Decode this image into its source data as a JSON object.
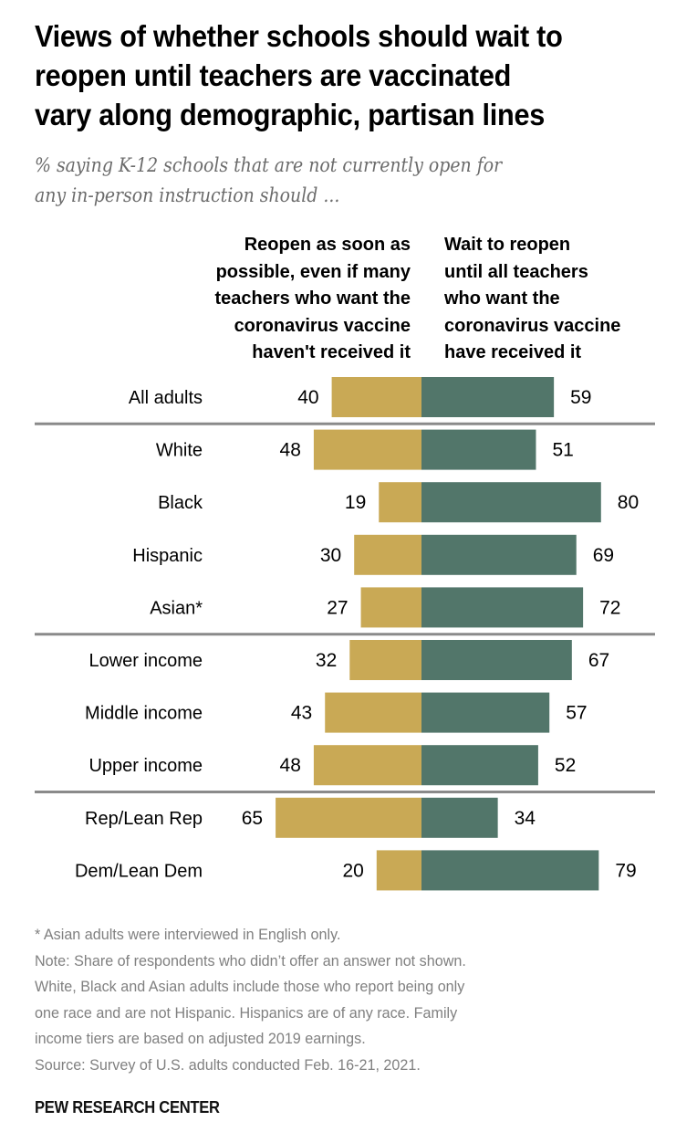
{
  "header": {
    "title_lines": [
      "Views of whether schools should wait to",
      "reopen until teachers are vaccinated",
      "vary along demographic, partisan lines"
    ],
    "subtitle_lines": [
      "% saying K-12 schools that are not currently open for",
      "any in-person instruction should ..."
    ]
  },
  "colors": {
    "reopen": "#C9A955",
    "wait": "#52766A",
    "separator": "#8a8a8a",
    "notes_text": "#808080"
  },
  "chart_data": {
    "type": "bar",
    "orientation": "horizontal-diverging",
    "title": "Views of whether schools should wait to reopen until teachers are vaccinated vary along demographic, partisan lines",
    "subtitle": "% saying K-12 schools that are not currently open for any in-person instruction should ...",
    "xlabel": "",
    "ylabel": "",
    "xlim": [
      0,
      100
    ],
    "grid": false,
    "categories": [
      "All adults",
      "White",
      "Black",
      "Hispanic",
      "Asian*",
      "Lower income",
      "Middle income",
      "Upper income",
      "Rep/Lean Rep",
      "Dem/Lean Dem"
    ],
    "series": [
      {
        "name": "Reopen as soon as possible, even if many teachers who want the coronavirus vaccine haven't received it",
        "header_lines": [
          "Reopen as soon as",
          "possible, even if many",
          "teachers who want the",
          "coronavirus vaccine",
          "haven't received it"
        ],
        "direction": "left",
        "values": [
          40,
          48,
          19,
          30,
          27,
          32,
          43,
          48,
          65,
          20
        ]
      },
      {
        "name": "Wait to reopen until all teachers who want the coronavirus vaccine have received it",
        "header_lines": [
          "Wait to reopen",
          "until all teachers",
          "who want the",
          "coronavirus vaccine",
          "have received it"
        ],
        "direction": "right",
        "values": [
          59,
          51,
          80,
          69,
          72,
          67,
          57,
          52,
          34,
          79
        ]
      }
    ],
    "group_separators_after": [
      "All adults",
      "Asian*",
      "Upper income"
    ]
  },
  "footer": {
    "note_lines": [
      "* Asian adults were interviewed in English only.",
      "Note: Share of respondents who didn’t offer an answer not shown.",
      "White, Black and Asian adults include those who report being only",
      "one race and are not Hispanic. Hispanics are of any race. Family",
      "income tiers are based on adjusted 2019 earnings.",
      "Source: Survey of U.S. adults conducted Feb. 16-21, 2021."
    ],
    "brand": "PEW RESEARCH CENTER"
  }
}
